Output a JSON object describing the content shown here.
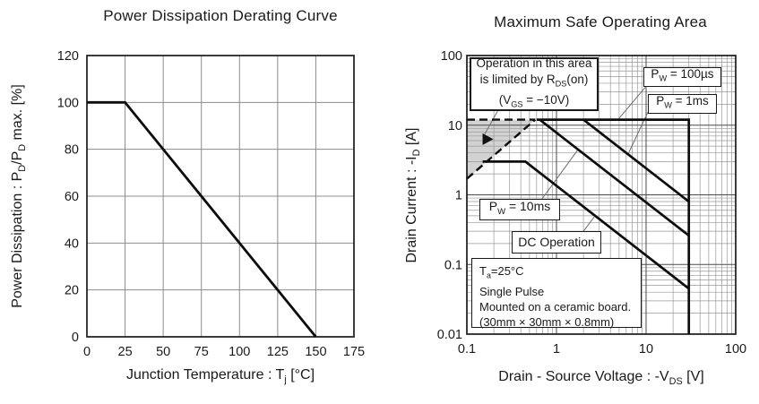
{
  "figure": {
    "background": "#ffffff",
    "curve_color": "#0d0d0d",
    "grid_color": "#8c8c8c",
    "shade_color": "#d2d2d2"
  },
  "chart_data": [
    {
      "type": "line",
      "title": "Power Dissipation Derating Curve",
      "xlabel": "Junction Temperature : Tj [°C]",
      "ylabel": "Power Dissipation : PD/PD max. [%]",
      "xlabel_parts": {
        "pre": "Junction Temperature : T",
        "sub": "j",
        "post": " [°C]"
      },
      "ylabel_parts": {
        "p1": "Power Dissipation : P",
        "s1": "D",
        "p2": "/P",
        "s2": "D",
        "p3": " max. [%]"
      },
      "xscale": "linear",
      "yscale": "linear",
      "xlim": [
        0,
        175
      ],
      "ylim": [
        0,
        120
      ],
      "xticks": [
        0,
        25,
        50,
        75,
        100,
        125,
        150,
        175
      ],
      "yticks": [
        0,
        20,
        40,
        60,
        80,
        100,
        120
      ],
      "grid": true,
      "series": [
        {
          "name": "derating-line",
          "style": "solid",
          "points": [
            [
              0,
              100
            ],
            [
              25,
              100
            ],
            [
              150,
              0
            ]
          ]
        }
      ]
    },
    {
      "type": "line",
      "title": "Maximum Safe Operating Area",
      "xlabel": "Drain - Source Voltage : -VDS [V]",
      "ylabel": "Drain Current : -ID [A]",
      "xlabel_parts": {
        "pre": "Drain - Source Voltage : -V",
        "sub": "DS",
        "post": " [V]"
      },
      "ylabel_parts": {
        "pre": "Drain Current : -I",
        "sub": "D",
        "post": " [A]"
      },
      "xscale": "log",
      "yscale": "log",
      "xlim": [
        0.1,
        100
      ],
      "ylim": [
        0.01,
        100
      ],
      "xticks": [
        0.1,
        1,
        10,
        100
      ],
      "yticks": [
        100,
        10,
        1,
        0.1,
        0.01
      ],
      "grid": true,
      "series": [
        {
          "name": "pw-100us",
          "style": "solid",
          "points": [
            [
              0.6,
              12
            ],
            [
              30,
              12
            ],
            [
              30,
              0.01
            ]
          ]
        },
        {
          "name": "pw-1ms",
          "style": "solid",
          "points": [
            [
              2,
              12
            ],
            [
              30,
              0.8
            ]
          ]
        },
        {
          "name": "pw-10ms",
          "style": "solid",
          "points": [
            [
              0.65,
              12
            ],
            [
              30,
              0.26
            ]
          ]
        },
        {
          "name": "dc-operation",
          "style": "solid",
          "points": [
            [
              0.15,
              3
            ],
            [
              0.45,
              3
            ],
            [
              30,
              0.045
            ]
          ]
        },
        {
          "name": "rds-on-limit-top",
          "style": "dashed",
          "points": [
            [
              0.1,
              12
            ],
            [
              0.58,
              12
            ]
          ]
        },
        {
          "name": "rds-on-limit-diagonal",
          "style": "dashed",
          "points": [
            [
              0.1,
              1.7
            ],
            [
              0.58,
              12
            ]
          ]
        }
      ],
      "shaded_region": {
        "points": [
          [
            0.1,
            12
          ],
          [
            0.58,
            12
          ],
          [
            0.1,
            1.7
          ]
        ],
        "color": "#d2d2d2"
      },
      "pointer_marker": {
        "v": 0.17,
        "i": 6.3
      },
      "leader_lines": [
        [
          [
            0.22,
            15.9
          ],
          [
            0.158,
            7.4
          ]
        ],
        [
          [
            9.8,
            35
          ],
          [
            4.9,
            12.2
          ]
        ],
        [
          [
            10.5,
            15.5
          ],
          [
            6.3,
            3.85
          ]
        ],
        [
          [
            0.69,
            0.875
          ],
          [
            1.74,
            4.47
          ]
        ],
        [
          [
            2.0,
            0.3
          ],
          [
            2.63,
            0.48
          ]
        ]
      ],
      "annotations": {
        "op_box": {
          "line1": "Operation in this area",
          "line2_pre": "is limited by R",
          "line2_sub": "DS",
          "line2_post": "(on)",
          "line3_pre": "(V",
          "line3_sub": "GS",
          "line3_post": " = −10V)"
        },
        "pw100us": {
          "pre": "P",
          "sub": "W",
          "post": " = 100µs"
        },
        "pw1ms": {
          "pre": "P",
          "sub": "W",
          "post": " = 1ms"
        },
        "pw10ms": {
          "pre": "P",
          "sub": "W",
          "post": " = 10ms"
        },
        "dc_operation": {
          "label": "DC Operation"
        },
        "conditions": {
          "line1_pre": "T",
          "line1_sub": "a",
          "line1_post": "=25°C",
          "line2": "Single Pulse",
          "line3": "Mounted on a ceramic board.",
          "line4": "(30mm × 30mm × 0.8mm)"
        }
      }
    }
  ]
}
